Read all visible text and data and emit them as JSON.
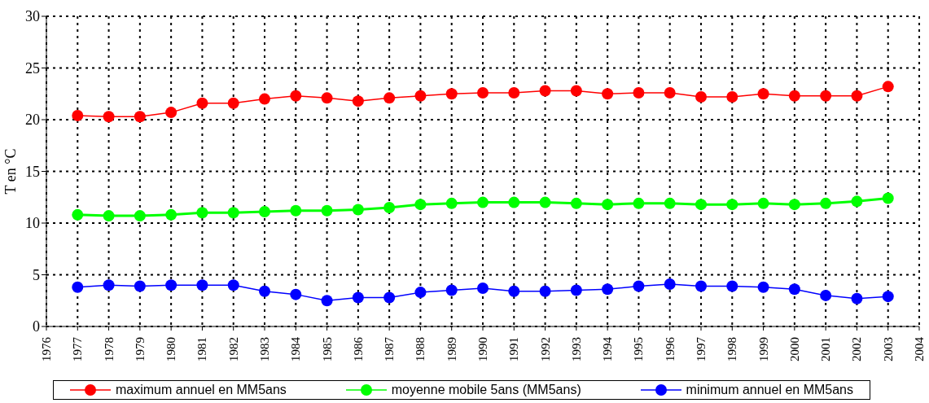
{
  "chart_data": {
    "type": "line",
    "ylabel": "T en °C",
    "x": [
      1977,
      1978,
      1979,
      1980,
      1981,
      1982,
      1983,
      1984,
      1985,
      1986,
      1987,
      1988,
      1989,
      1990,
      1991,
      1992,
      1993,
      1994,
      1995,
      1996,
      1997,
      1998,
      1999,
      2000,
      2001,
      2002,
      2003
    ],
    "series": [
      {
        "name": "maximum annuel en MM5ans",
        "color": "#ff0000",
        "values": [
          20.4,
          20.3,
          20.3,
          20.7,
          21.6,
          21.6,
          22.0,
          22.3,
          22.1,
          21.8,
          22.1,
          22.3,
          22.5,
          22.6,
          22.6,
          22.8,
          22.8,
          22.5,
          22.6,
          22.6,
          22.2,
          22.2,
          22.5,
          22.3,
          22.3,
          22.3,
          23.2
        ]
      },
      {
        "name": "moyenne mobile 5ans (MM5ans)",
        "color": "#00ff00",
        "values": [
          10.8,
          10.7,
          10.7,
          10.8,
          11.0,
          11.0,
          11.1,
          11.2,
          11.2,
          11.3,
          11.5,
          11.8,
          11.9,
          12.0,
          12.0,
          12.0,
          11.9,
          11.8,
          11.9,
          11.9,
          11.8,
          11.8,
          11.9,
          11.8,
          11.9,
          12.1,
          12.4
        ]
      },
      {
        "name": "minimum annuel en MM5ans",
        "color": "#0000ff",
        "values": [
          3.8,
          4.0,
          3.9,
          4.0,
          4.0,
          4.0,
          3.4,
          3.1,
          2.5,
          2.8,
          2.8,
          3.3,
          3.5,
          3.7,
          3.4,
          3.4,
          3.5,
          3.6,
          3.9,
          4.1,
          3.9,
          3.9,
          3.8,
          3.6,
          3.0,
          2.7,
          2.9
        ]
      }
    ],
    "xlim": [
      1976,
      2004
    ],
    "xticks": [
      1976,
      1977,
      1978,
      1979,
      1980,
      1981,
      1982,
      1983,
      1984,
      1985,
      1986,
      1987,
      1988,
      1989,
      1990,
      1991,
      1992,
      1993,
      1994,
      1995,
      1996,
      1997,
      1998,
      1999,
      2000,
      2001,
      2002,
      2003,
      2004
    ],
    "ylim": [
      0,
      30
    ],
    "yticks": [
      0,
      5,
      10,
      15,
      20,
      25,
      30
    ],
    "grid": true,
    "legend": "bottom",
    "marker": "circle",
    "line_style": "solid"
  }
}
